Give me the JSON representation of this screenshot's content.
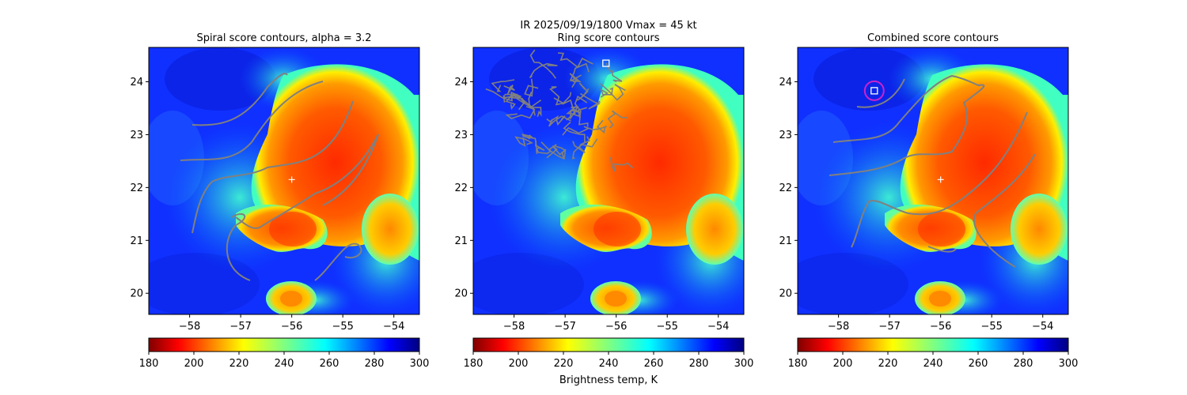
{
  "figure": {
    "suptitle_line1": "IR  2025/09/19/1800    Vmax = 45 kt",
    "colorbar_label": "Brightness temp, K"
  },
  "colors": {
    "contour": "#808080",
    "center_marker": "#ffffff",
    "highlight_circle": "#cc22cc",
    "colormap": "jet_r"
  },
  "chart_data": [
    {
      "type": "heatmap",
      "title": "Spiral score contours, alpha =  3.2",
      "x_ticks": [
        -58,
        -57,
        -56,
        -55,
        -54
      ],
      "y_ticks": [
        20,
        21,
        22,
        23,
        24
      ],
      "xlim": [
        -58.8,
        -53.5
      ],
      "ylim": [
        19.6,
        24.65
      ],
      "center": [
        -56.0,
        22.15
      ],
      "colorbar": {
        "ticks": [
          180,
          200,
          220,
          240,
          260,
          280,
          300
        ],
        "range": [
          180,
          300
        ]
      }
    },
    {
      "type": "heatmap",
      "title": "Ring score contours",
      "x_ticks": [
        -58,
        -57,
        -56,
        -55,
        -54
      ],
      "y_ticks": [
        20,
        21,
        22,
        23,
        24
      ],
      "xlim": [
        -58.8,
        -53.5
      ],
      "ylim": [
        19.6,
        24.65
      ],
      "best_point": [
        -56.2,
        24.35
      ],
      "colorbar": {
        "ticks": [
          180,
          200,
          220,
          240,
          260,
          280,
          300
        ],
        "range": [
          180,
          300
        ]
      }
    },
    {
      "type": "heatmap",
      "title": "Combined score contours",
      "x_ticks": [
        -58,
        -57,
        -56,
        -55,
        -54
      ],
      "y_ticks": [
        20,
        21,
        22,
        23,
        24
      ],
      "xlim": [
        -58.8,
        -53.5
      ],
      "ylim": [
        19.6,
        24.65
      ],
      "center": [
        -56.0,
        22.15
      ],
      "best_point": [
        -57.3,
        23.83
      ],
      "colorbar": {
        "ticks": [
          180,
          200,
          220,
          240,
          260,
          280,
          300
        ],
        "range": [
          180,
          300
        ]
      }
    }
  ]
}
